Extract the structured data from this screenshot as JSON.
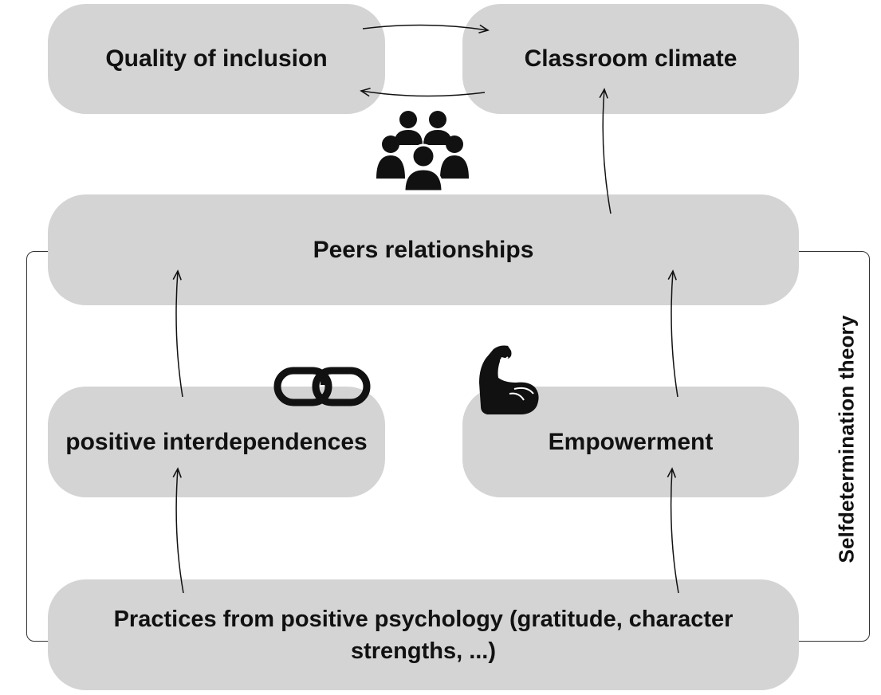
{
  "nodes": {
    "quality_of_inclusion": "Quality of inclusion",
    "classroom_climate": "Classroom climate",
    "peers_relationships": "Peers relationships",
    "positive_interdependences": "positive interdependences",
    "empowerment": "Empowerment",
    "practices": "Practices from positive psychology (gratitude, character strengths, ...)"
  },
  "frame_label": "Selfdetermination theory",
  "icons": {
    "group": "people-group-icon",
    "link": "chain-link-icon",
    "strength": "flexed-arm-icon"
  },
  "colors": {
    "node_fill": "#d4d4d4",
    "text": "#111111",
    "lines": "#111111"
  }
}
